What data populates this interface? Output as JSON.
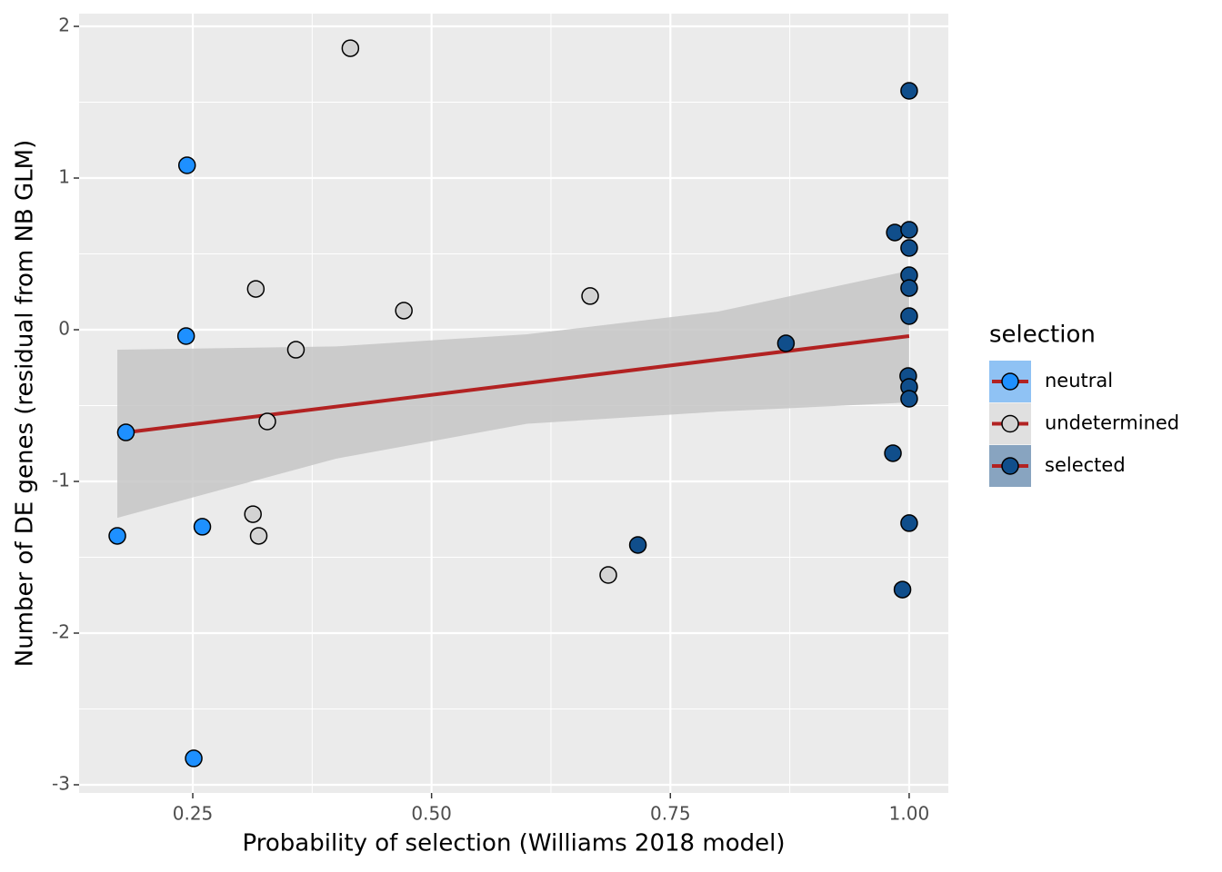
{
  "chart_data": {
    "type": "scatter",
    "x_label": "Probability of selection (Williams 2018 model)",
    "y_label": "Number of DE genes (residual from NB GLM)",
    "legend_title": "selection",
    "legend_position": "right",
    "grid": true,
    "xlim": [
      0.131,
      1.041
    ],
    "ylim": [
      -3.054,
      2.084
    ],
    "xticks": [
      {
        "value": 0.25,
        "label": "0.25"
      },
      {
        "value": 0.5,
        "label": "0.50"
      },
      {
        "value": 0.75,
        "label": "0.75"
      },
      {
        "value": 1.0,
        "label": "1.00"
      }
    ],
    "yticks": [
      -3,
      -2,
      -1,
      0,
      1,
      2
    ],
    "series": [
      {
        "name": "neutral",
        "color": "#1E90FF",
        "x": [
          0.18,
          0.171,
          0.244,
          0.243,
          0.26,
          0.251
        ],
        "values": [
          -0.677,
          -1.359,
          1.084,
          -0.042,
          -1.299,
          -2.826
        ]
      },
      {
        "name": "undetermined",
        "color": "#D3D3D3",
        "x": [
          0.415,
          0.316,
          0.471,
          0.358,
          0.328,
          0.313,
          0.319,
          0.666,
          0.685
        ],
        "values": [
          1.856,
          0.269,
          0.126,
          -0.132,
          -0.605,
          -1.216,
          -1.359,
          0.222,
          -1.617
        ]
      },
      {
        "name": "selected",
        "color": "#104E8B",
        "x": [
          1.0,
          0.985,
          1.0,
          1.0,
          1.0,
          1.0,
          1.0,
          0.871,
          0.999,
          1.0,
          1.0,
          0.983,
          1.0,
          0.716,
          0.993
        ],
        "values": [
          1.575,
          0.641,
          0.659,
          0.539,
          0.359,
          0.275,
          0.09,
          -0.09,
          -0.305,
          -0.377,
          -0.455,
          -0.814,
          -1.275,
          -1.419,
          -1.713
        ]
      }
    ],
    "fit": {
      "color": "#B22222",
      "x": [
        0.171,
        1.0
      ],
      "values": [
        -0.684,
        -0.042
      ]
    },
    "band": {
      "color": "#C6C6C6",
      "x": [
        0.171,
        0.4,
        0.6,
        0.8,
        1.0
      ],
      "upper": [
        -0.132,
        -0.11,
        -0.03,
        0.12,
        0.389
      ],
      "lower": [
        -1.24,
        -0.85,
        -0.62,
        -0.54,
        -0.479
      ]
    }
  }
}
